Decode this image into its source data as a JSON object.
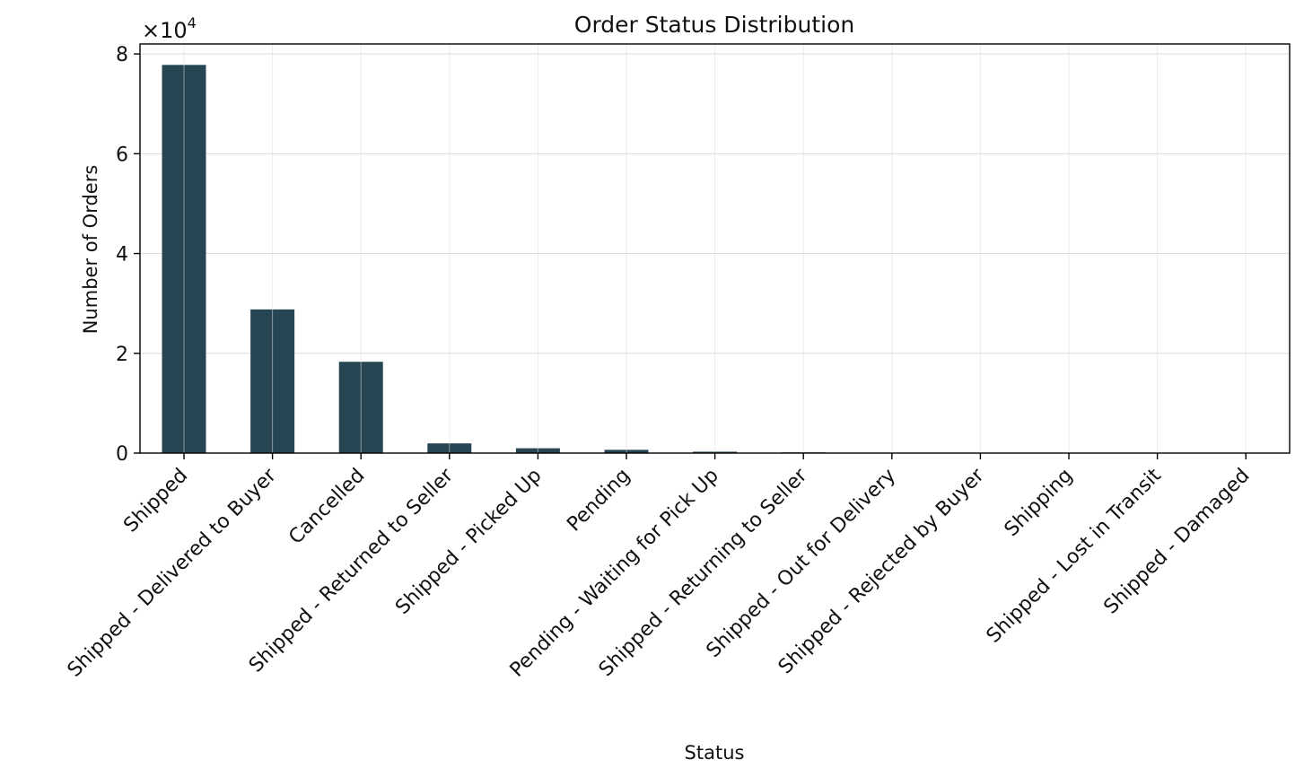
{
  "chart_data": {
    "type": "bar",
    "title": "Order Status Distribution",
    "xlabel": "Status",
    "ylabel": "Number of Orders",
    "y_scale_multiplier": "×10",
    "y_scale_exponent": "4",
    "ylim": [
      0,
      82000
    ],
    "y_ticks": [
      0,
      20000,
      40000,
      60000,
      80000
    ],
    "y_tick_labels": [
      "0",
      "2",
      "4",
      "6",
      "8"
    ],
    "categories": [
      "Shipped",
      "Shipped - Delivered to Buyer",
      "Cancelled",
      "Shipped - Returned to Seller",
      "Shipped - Picked Up",
      "Pending",
      "Pending - Waiting for Pick Up",
      "Shipped - Returning to Seller",
      "Shipped - Out for Delivery",
      "Shipped - Rejected by Buyer",
      "Shipping",
      "Shipped - Lost in Transit",
      "Shipped - Damaged"
    ],
    "values": [
      77800,
      28800,
      18300,
      1950,
      970,
      660,
      280,
      140,
      35,
      11,
      8,
      5,
      1
    ],
    "grid": true,
    "colors": {
      "bar": "#274653",
      "grid": "#dcdcdc",
      "axis": "#000000"
    }
  }
}
